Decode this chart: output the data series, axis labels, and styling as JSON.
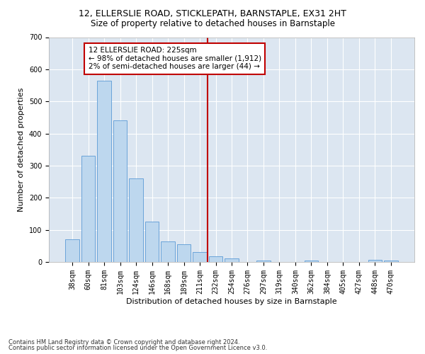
{
  "title1": "12, ELLERSLIE ROAD, STICKLEPATH, BARNSTAPLE, EX31 2HT",
  "title2": "Size of property relative to detached houses in Barnstaple",
  "xlabel": "Distribution of detached houses by size in Barnstaple",
  "ylabel": "Number of detached properties",
  "categories": [
    "38sqm",
    "60sqm",
    "81sqm",
    "103sqm",
    "124sqm",
    "146sqm",
    "168sqm",
    "189sqm",
    "211sqm",
    "232sqm",
    "254sqm",
    "276sqm",
    "297sqm",
    "319sqm",
    "340sqm",
    "362sqm",
    "384sqm",
    "405sqm",
    "427sqm",
    "448sqm",
    "470sqm"
  ],
  "values": [
    70,
    330,
    565,
    440,
    260,
    125,
    65,
    55,
    30,
    17,
    12,
    0,
    5,
    0,
    0,
    5,
    0,
    0,
    0,
    7,
    5
  ],
  "bar_color": "#bdd7ee",
  "bar_edge_color": "#5b9bd5",
  "vline_color": "#c00000",
  "annotation_text": "12 ELLERSLIE ROAD: 225sqm\n← 98% of detached houses are smaller (1,912)\n2% of semi-detached houses are larger (44) →",
  "annotation_box_color": "white",
  "annotation_box_edge_color": "#c00000",
  "ylim": [
    0,
    700
  ],
  "yticks": [
    0,
    100,
    200,
    300,
    400,
    500,
    600,
    700
  ],
  "footer1": "Contains HM Land Registry data © Crown copyright and database right 2024.",
  "footer2": "Contains public sector information licensed under the Open Government Licence v3.0.",
  "plot_background_color": "#dce6f1",
  "title_fontsize": 9,
  "subtitle_fontsize": 8.5,
  "tick_fontsize": 7,
  "label_fontsize": 8,
  "footer_fontsize": 6
}
